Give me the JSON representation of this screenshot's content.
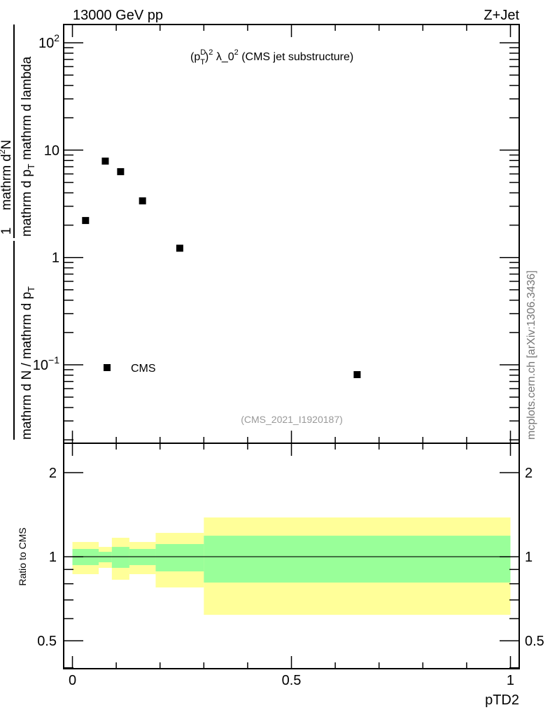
{
  "header": {
    "left": "13000 GeV pp",
    "right": "Z+Jet"
  },
  "side_label": "mcplots.cern.ch [arXiv:1306.3436]",
  "analysis_tag": "(CMS_2021_I1920187)",
  "chart_data": [
    {
      "type": "scatter",
      "title": {
        "base": "(p",
        "sub": "T",
        "sup": "D",
        "rest": ")",
        "sup2": "2",
        "tail": " λ_0",
        "sup3": "2",
        "end": " (CMS jet substructure)"
      },
      "ylabel": {
        "frac1_num": "1",
        "frac1_den": "mathrm d N / mathrm d p",
        "frac1_den_sub": "T",
        "frac2_num": "mathrm d",
        "frac2_num_sup": "2",
        "frac2_num_end": "N",
        "frac2_den": "mathrm d p",
        "frac2_den_sub": "T",
        "frac2_den_end": " mathrm d lambda"
      },
      "yscale": "log",
      "xlim": [
        -0.02,
        1.02
      ],
      "ylim": [
        0.0186,
        148
      ],
      "yticks": [
        {
          "v": 100,
          "base": "10",
          "sup": "2"
        },
        {
          "v": 10,
          "base": "10",
          "sup": ""
        },
        {
          "v": 1,
          "base": "1",
          "sup": ""
        },
        {
          "v": 0.1,
          "base": "10",
          "sup": "−1"
        }
      ],
      "legend": {
        "label": "CMS",
        "position": "bottom-left"
      },
      "series": [
        {
          "name": "CMS",
          "x": [
            0.03,
            0.075,
            0.11,
            0.16,
            0.245,
            0.65
          ],
          "y": [
            2.21,
            7.9,
            6.3,
            3.37,
            1.22,
            0.081
          ]
        }
      ]
    },
    {
      "type": "area",
      "ylabel": "Ratio to CMS",
      "xlabel": "pTD2",
      "yscale": "log",
      "xlim": [
        -0.02,
        1.02
      ],
      "ylim": [
        0.397,
        2.55
      ],
      "xticks": [
        {
          "v": 0,
          "label": "0"
        },
        {
          "v": 0.5,
          "label": "0.5"
        },
        {
          "v": 1,
          "label": "1"
        }
      ],
      "yticks": [
        {
          "v": 2,
          "label": "2"
        },
        {
          "v": 1,
          "label": "1"
        },
        {
          "v": 0.5,
          "label": "0.5"
        }
      ],
      "bin_edges": [
        0,
        0.06,
        0.09,
        0.13,
        0.19,
        0.3,
        1.0
      ],
      "band_outer": {
        "color": "#ffff99",
        "lo": [
          0.866,
          0.912,
          0.827,
          0.866,
          0.776,
          0.619
        ],
        "hi": [
          1.129,
          1.084,
          1.169,
          1.129,
          1.217,
          1.382
        ]
      },
      "band_inner": {
        "color": "#99ff99",
        "lo": [
          0.933,
          0.955,
          0.912,
          0.933,
          0.886,
          0.808
        ],
        "hi": [
          1.066,
          1.041,
          1.084,
          1.066,
          1.11,
          1.189
        ]
      },
      "reference_line": 1
    }
  ]
}
